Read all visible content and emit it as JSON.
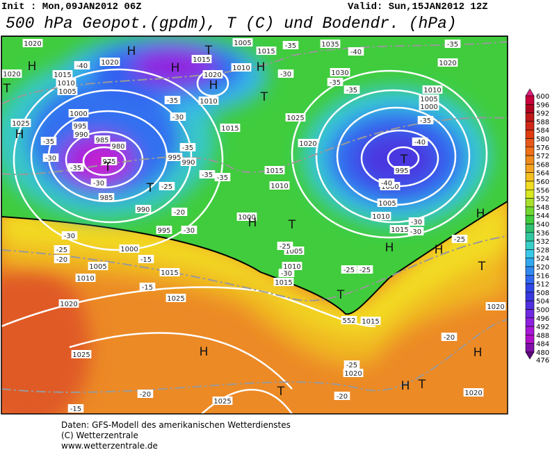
{
  "header": {
    "init": "Init : Mon,09JAN2012 06Z",
    "valid": "Valid: Sun,15JAN2012 12Z",
    "title": "500 hPa Geopot.(gpdm), T (C) und Bodendr. (hPa)"
  },
  "map": {
    "pressure_labels": [
      "1020",
      "1020",
      "1020",
      "1015",
      "1010",
      "1005",
      "1000",
      "995",
      "990",
      "985",
      "980",
      "975",
      "985",
      "990",
      "995",
      "1000",
      "1005",
      "1010",
      "1015",
      "1020",
      "1025",
      "1025",
      "1025",
      "1020",
      "1015",
      "1015",
      "1010",
      "1005",
      "1000",
      "1010",
      "1015",
      "1020",
      "1025",
      "1015",
      "1010",
      "1020",
      "1010",
      "1015",
      "1005",
      "1015",
      "1035",
      "1030",
      "1010",
      "1005",
      "1000",
      "995",
      "1000",
      "1005",
      "1010",
      "1015",
      "1020",
      "1020",
      "1020",
      "1025",
      "995",
      "990",
      "552"
    ],
    "temperature_labels": [
      "-35",
      "-40",
      "-35",
      "-30",
      "-35",
      "-35",
      "-40",
      "-35",
      "-30",
      "-35",
      "-35",
      "-25",
      "-30",
      "-35",
      "-30",
      "-35",
      "-25",
      "-20",
      "-15",
      "-30",
      "-30",
      "-20",
      "-35",
      "-25",
      "-30",
      "-25",
      "-25",
      "-30",
      "-30",
      "-25",
      "-15",
      "-15",
      "-20",
      "-20",
      "-20",
      "-25",
      "-40",
      "-35",
      "-40"
    ],
    "centers": [
      "H",
      "T",
      "H",
      "H",
      "H",
      "T",
      "H",
      "H",
      "T",
      "H",
      "T",
      "T",
      "T",
      "T",
      "H",
      "H",
      "H",
      "T",
      "T",
      "H",
      "T",
      "H",
      "T",
      "H"
    ]
  },
  "colorbar": {
    "levels": [
      600,
      596,
      592,
      588,
      584,
      580,
      576,
      572,
      568,
      564,
      560,
      556,
      552,
      548,
      544,
      540,
      536,
      532,
      528,
      524,
      520,
      516,
      512,
      508,
      504,
      500,
      496,
      492,
      488,
      484,
      480,
      476
    ],
    "colors": [
      "#c8003c",
      "#b00020",
      "#c01818",
      "#d02818",
      "#e03c10",
      "#e85818",
      "#ef7018",
      "#f08a1c",
      "#f4a420",
      "#f4c020",
      "#f0dc20",
      "#d8e820",
      "#a8e02c",
      "#70d830",
      "#40cc3c",
      "#30c070",
      "#30c8a0",
      "#38d0c8",
      "#38c8e8",
      "#30a8f0",
      "#3088f0",
      "#3068f0",
      "#3048e8",
      "#3838e0",
      "#5030e0",
      "#7028e0",
      "#9020e0",
      "#a818d8",
      "#b010c8",
      "#8010a8"
    ],
    "over_color": "#e0207c",
    "under_color": "#600880"
  },
  "footer": {
    "line1": "Daten: GFS-Modell des amerikanischen Wetterdienstes",
    "line2": "(C) Wetterzentrale",
    "line3": "www.wetterzentrale.de"
  }
}
